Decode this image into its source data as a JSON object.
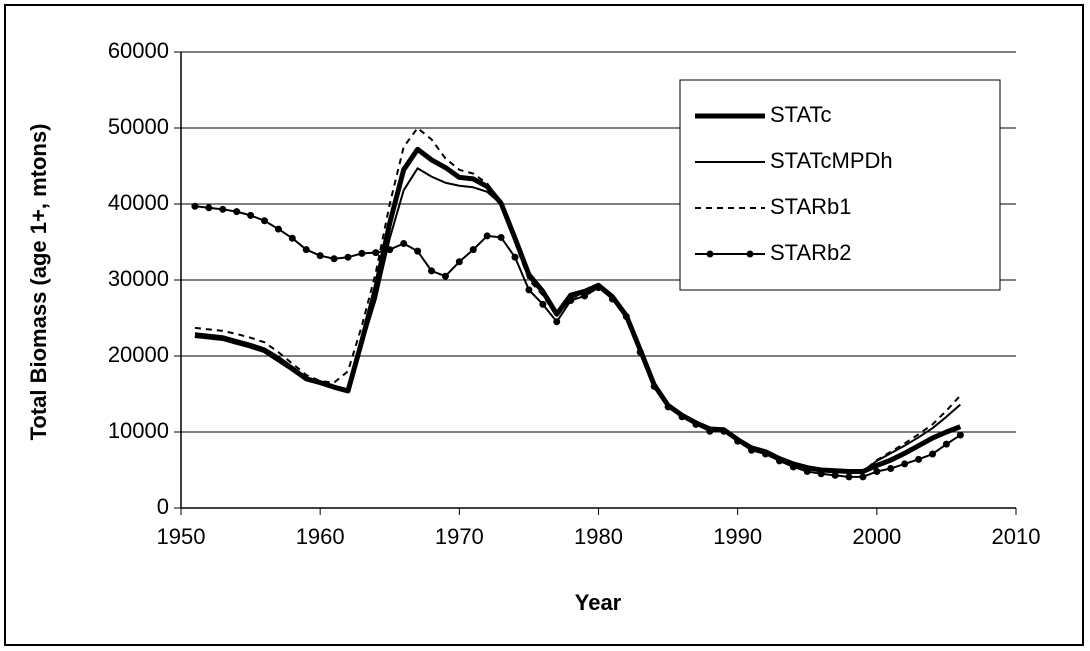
{
  "chart_data": {
    "type": "line",
    "x_label": "Year",
    "y_label": "Total Biomass (age 1+, mtons)",
    "x": [
      1951,
      1952,
      1953,
      1954,
      1955,
      1956,
      1957,
      1958,
      1959,
      1960,
      1961,
      1962,
      1963,
      1964,
      1965,
      1966,
      1967,
      1968,
      1969,
      1970,
      1971,
      1972,
      1973,
      1974,
      1975,
      1976,
      1977,
      1978,
      1979,
      1980,
      1981,
      1982,
      1983,
      1984,
      1985,
      1986,
      1987,
      1988,
      1989,
      1990,
      1991,
      1992,
      1993,
      1994,
      1995,
      1996,
      1997,
      1998,
      1999,
      2000,
      2001,
      2002,
      2003,
      2004,
      2005,
      2006
    ],
    "series": [
      {
        "name": "STATc",
        "color": "#000000",
        "line_width": 5,
        "dash": "none",
        "marker": "none",
        "values": [
          22700,
          22500,
          22300,
          21800,
          21300,
          20700,
          19500,
          18300,
          17000,
          16500,
          15900,
          15400,
          22000,
          29000,
          37500,
          44500,
          47200,
          45800,
          44800,
          43500,
          43300,
          42300,
          40100,
          35500,
          30700,
          28500,
          25500,
          28000,
          28500,
          29300,
          27800,
          25300,
          20800,
          16200,
          13500,
          12200,
          11200,
          10400,
          10300,
          9000,
          7900,
          7400,
          6500,
          5800,
          5300,
          5000,
          4900,
          4800,
          4800,
          5600,
          6300,
          7200,
          8200,
          9200,
          10000,
          10700
        ]
      },
      {
        "name": "STATcMPDh",
        "color": "#000000",
        "line_width": 2,
        "dash": "none",
        "marker": "none",
        "values": [
          23000,
          22800,
          22600,
          22100,
          21600,
          21000,
          19900,
          18600,
          17200,
          16600,
          16000,
          15500,
          21500,
          27500,
          35500,
          41800,
          44700,
          43600,
          42800,
          42400,
          42200,
          41600,
          40000,
          35300,
          30300,
          28200,
          25300,
          27700,
          28300,
          29100,
          27700,
          25200,
          20700,
          16100,
          13400,
          12100,
          11100,
          10300,
          10200,
          8900,
          7800,
          7300,
          6400,
          5700,
          5200,
          4900,
          4800,
          4700,
          4800,
          6200,
          7200,
          8200,
          9300,
          10500,
          12000,
          13600
        ]
      },
      {
        "name": "STARb1",
        "color": "#000000",
        "line_width": 2,
        "dash": "6,5",
        "marker": "none",
        "values": [
          23700,
          23500,
          23300,
          22900,
          22400,
          21800,
          20500,
          19000,
          17500,
          16700,
          16500,
          18000,
          24000,
          31000,
          40000,
          47500,
          50000,
          48500,
          46000,
          44500,
          44000,
          42700,
          40200,
          35000,
          30000,
          28000,
          25200,
          27600,
          28200,
          29000,
          27600,
          25100,
          20600,
          16100,
          13500,
          12200,
          11200,
          10400,
          10300,
          9000,
          7900,
          7300,
          6500,
          5700,
          5200,
          4900,
          4800,
          4700,
          4800,
          6300,
          7400,
          8500,
          9700,
          11000,
          12800,
          14800
        ]
      },
      {
        "name": "STARb2",
        "color": "#000000",
        "line_width": 2,
        "dash": "none",
        "marker": "circle",
        "values": [
          39700,
          39500,
          39300,
          39000,
          38500,
          37800,
          36700,
          35500,
          34000,
          33200,
          32800,
          33000,
          33500,
          33600,
          34000,
          34800,
          33800,
          31200,
          30500,
          32400,
          34000,
          35800,
          35600,
          33000,
          28700,
          26800,
          24500,
          27300,
          27900,
          29000,
          27500,
          25200,
          20500,
          16000,
          13300,
          12000,
          11000,
          10100,
          10100,
          8800,
          7600,
          7100,
          6200,
          5400,
          4800,
          4500,
          4300,
          4100,
          4100,
          4800,
          5200,
          5800,
          6400,
          7100,
          8400,
          9600
        ]
      }
    ],
    "xlim": [
      1950,
      2010
    ],
    "xticks": [
      1950,
      1960,
      1970,
      1980,
      1990,
      2000,
      2010
    ],
    "ylim": [
      0,
      60000
    ],
    "yticks": [
      0,
      10000,
      20000,
      30000,
      40000,
      50000,
      60000
    ],
    "grid": "y",
    "legend_position": "upper right"
  }
}
